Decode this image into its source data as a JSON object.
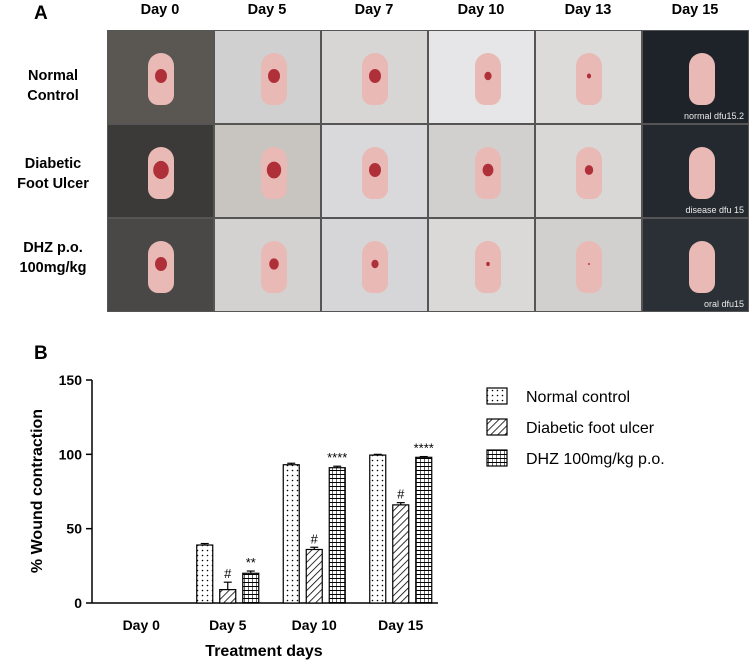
{
  "panel_a": {
    "letter": "A",
    "days": [
      "Day 0",
      "Day 5",
      "Day 7",
      "Day 10",
      "Day 13",
      "Day 15"
    ],
    "rows": [
      {
        "label_line1": "Normal",
        "label_line2": "Control",
        "watermark": "normal dfu15.2"
      },
      {
        "label_line1": "Diabetic",
        "label_line2": "Foot Ulcer",
        "watermark": "disease dfu 15"
      },
      {
        "label_line1": "DHZ p.o.",
        "label_line2": "100mg/kg",
        "watermark": "oral dfu15"
      }
    ]
  },
  "panel_b": {
    "letter": "B",
    "chart_data": {
      "type": "bar",
      "categories": [
        "Day 0",
        "Day 5",
        "Day 10",
        "Day 15"
      ],
      "series": [
        {
          "name": "Normal control",
          "values": [
            0,
            39,
            93,
            99.5
          ],
          "errors": [
            0,
            1,
            1,
            0.5
          ],
          "pattern": "dots",
          "marks": [
            "",
            "",
            "",
            ""
          ]
        },
        {
          "name": "Diabetic foot ulcer",
          "values": [
            0,
            9,
            36,
            66
          ],
          "errors": [
            0,
            5,
            1.5,
            1.5
          ],
          "pattern": "diag",
          "marks": [
            "",
            "#",
            "#",
            "#"
          ]
        },
        {
          "name": "DHZ 100mg/kg p.o.",
          "values": [
            0,
            20,
            91,
            98
          ],
          "errors": [
            0,
            1.5,
            1,
            0.5
          ],
          "pattern": "grid",
          "marks": [
            "",
            "**",
            "****",
            "****"
          ]
        }
      ],
      "ylabel": "% Wound contraction",
      "xlabel": "Treatment days",
      "ylim": [
        0,
        150
      ],
      "yticks": [
        "0",
        "50",
        "100",
        "150"
      ],
      "legend_position": "right"
    }
  }
}
